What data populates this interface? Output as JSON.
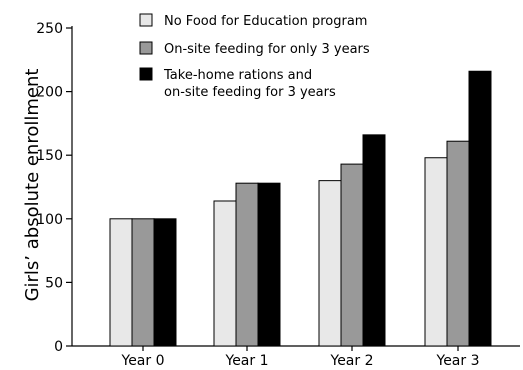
{
  "chart_data": {
    "type": "bar",
    "ylabel": "Girls’ absolute enrollment",
    "xlabel": "",
    "categories": [
      "Year 0",
      "Year 1",
      "Year 2",
      "Year 3"
    ],
    "ylim": [
      0,
      250
    ],
    "yticks": [
      0,
      50,
      100,
      150,
      200,
      250
    ],
    "legend_position": "top",
    "grid": false,
    "series": [
      {
        "name": "No Food for Education program",
        "color": "#e8e8e8",
        "values": [
          100,
          114,
          130,
          148
        ]
      },
      {
        "name": "On-site feeding for only 3 years",
        "color": "#999999",
        "values": [
          100,
          128,
          143,
          161
        ]
      },
      {
        "name_lines": [
          "Take-home rations and",
          "on-site feeding for 3 years"
        ],
        "color": "#000000",
        "values": [
          100,
          128,
          166,
          216
        ]
      }
    ]
  }
}
